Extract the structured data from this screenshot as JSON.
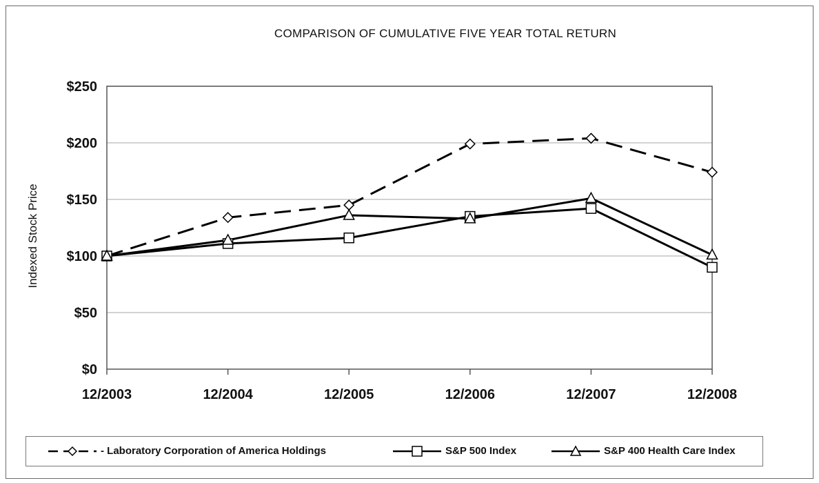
{
  "chart_data": {
    "type": "line",
    "title": "COMPARISON OF CUMULATIVE FIVE YEAR TOTAL RETURN",
    "xlabel": "",
    "ylabel": "Indexed Stock Price",
    "categories": [
      "12/2003",
      "12/2004",
      "12/2005",
      "12/2006",
      "12/2007",
      "12/2008"
    ],
    "ylim": [
      0,
      250
    ],
    "yticks": [
      0,
      50,
      100,
      150,
      200,
      250
    ],
    "ytick_labels": [
      "$0",
      "$50",
      "$100",
      "$150",
      "$200",
      "$250"
    ],
    "grid": "horizontal",
    "legend_position": "bottom",
    "series": [
      {
        "name": "- Laboratory Corporation of America Holdings",
        "values": [
          100,
          134,
          145,
          199,
          204,
          174
        ],
        "line_style": "dashed",
        "marker": "diamond",
        "color": "#000000"
      },
      {
        "name": "S&P 500 Index",
        "values": [
          100,
          111,
          116,
          135,
          142,
          90
        ],
        "line_style": "solid",
        "marker": "square",
        "color": "#000000"
      },
      {
        "name": "S&P 400 Health Care Index",
        "values": [
          100,
          114,
          136,
          133,
          151,
          101
        ],
        "line_style": "solid",
        "marker": "triangle",
        "color": "#000000"
      }
    ]
  }
}
